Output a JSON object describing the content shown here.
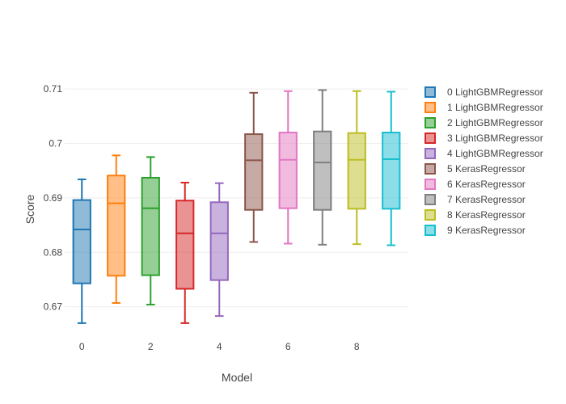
{
  "chart_data": {
    "type": "box",
    "xlabel": "Model",
    "ylabel": "Score",
    "xlim": [
      -0.5,
      9.5
    ],
    "ylim": [
      0.6655,
      0.7115
    ],
    "x_ticks": [
      0,
      2,
      4,
      6,
      8
    ],
    "x_tick_labels": [
      "0",
      "2",
      "4",
      "6",
      "8"
    ],
    "y_ticks": [
      0.67,
      0.68,
      0.69,
      0.7,
      0.71
    ],
    "y_tick_labels": [
      "0.67",
      "0.68",
      "0.69",
      "0.7",
      "0.71"
    ],
    "grid": true,
    "legend_position": "right",
    "series": [
      {
        "name": "0 LightGBMRegressor",
        "x": 0,
        "color": "#1f77b4",
        "min": 0.667,
        "q1": 0.6743,
        "median": 0.6842,
        "q3": 0.6896,
        "max": 0.6934
      },
      {
        "name": "1 LightGBMRegressor",
        "x": 1,
        "color": "#ff7f0e",
        "min": 0.6707,
        "q1": 0.6757,
        "median": 0.689,
        "q3": 0.6941,
        "max": 0.6978
      },
      {
        "name": "2 LightGBMRegressor",
        "x": 2,
        "color": "#2ca02c",
        "min": 0.6704,
        "q1": 0.6758,
        "median": 0.6881,
        "q3": 0.6937,
        "max": 0.6975
      },
      {
        "name": "3 LightGBMRegressor",
        "x": 3,
        "color": "#d62728",
        "min": 0.667,
        "q1": 0.6733,
        "median": 0.6835,
        "q3": 0.6895,
        "max": 0.6928
      },
      {
        "name": "4 LightGBMRegressor",
        "x": 4,
        "color": "#9467bd",
        "min": 0.6683,
        "q1": 0.6749,
        "median": 0.6835,
        "q3": 0.6892,
        "max": 0.6927
      },
      {
        "name": "5 KerasRegressor",
        "x": 5,
        "color": "#8c564b",
        "min": 0.6819,
        "q1": 0.6878,
        "median": 0.6969,
        "q3": 0.7017,
        "max": 0.7093
      },
      {
        "name": "6 KerasRegressor",
        "x": 6,
        "color": "#e377c2",
        "min": 0.6816,
        "q1": 0.6881,
        "median": 0.697,
        "q3": 0.702,
        "max": 0.7096
      },
      {
        "name": "7 KerasRegressor",
        "x": 7,
        "color": "#7f7f7f",
        "min": 0.6814,
        "q1": 0.6878,
        "median": 0.6965,
        "q3": 0.7022,
        "max": 0.7098
      },
      {
        "name": "8 KerasRegressor",
        "x": 8,
        "color": "#bcbd22",
        "min": 0.6815,
        "q1": 0.688,
        "median": 0.697,
        "q3": 0.7019,
        "max": 0.7096
      },
      {
        "name": "9 KerasRegressor",
        "x": 9,
        "color": "#17becf",
        "min": 0.6813,
        "q1": 0.688,
        "median": 0.6971,
        "q3": 0.702,
        "max": 0.7095
      }
    ]
  }
}
